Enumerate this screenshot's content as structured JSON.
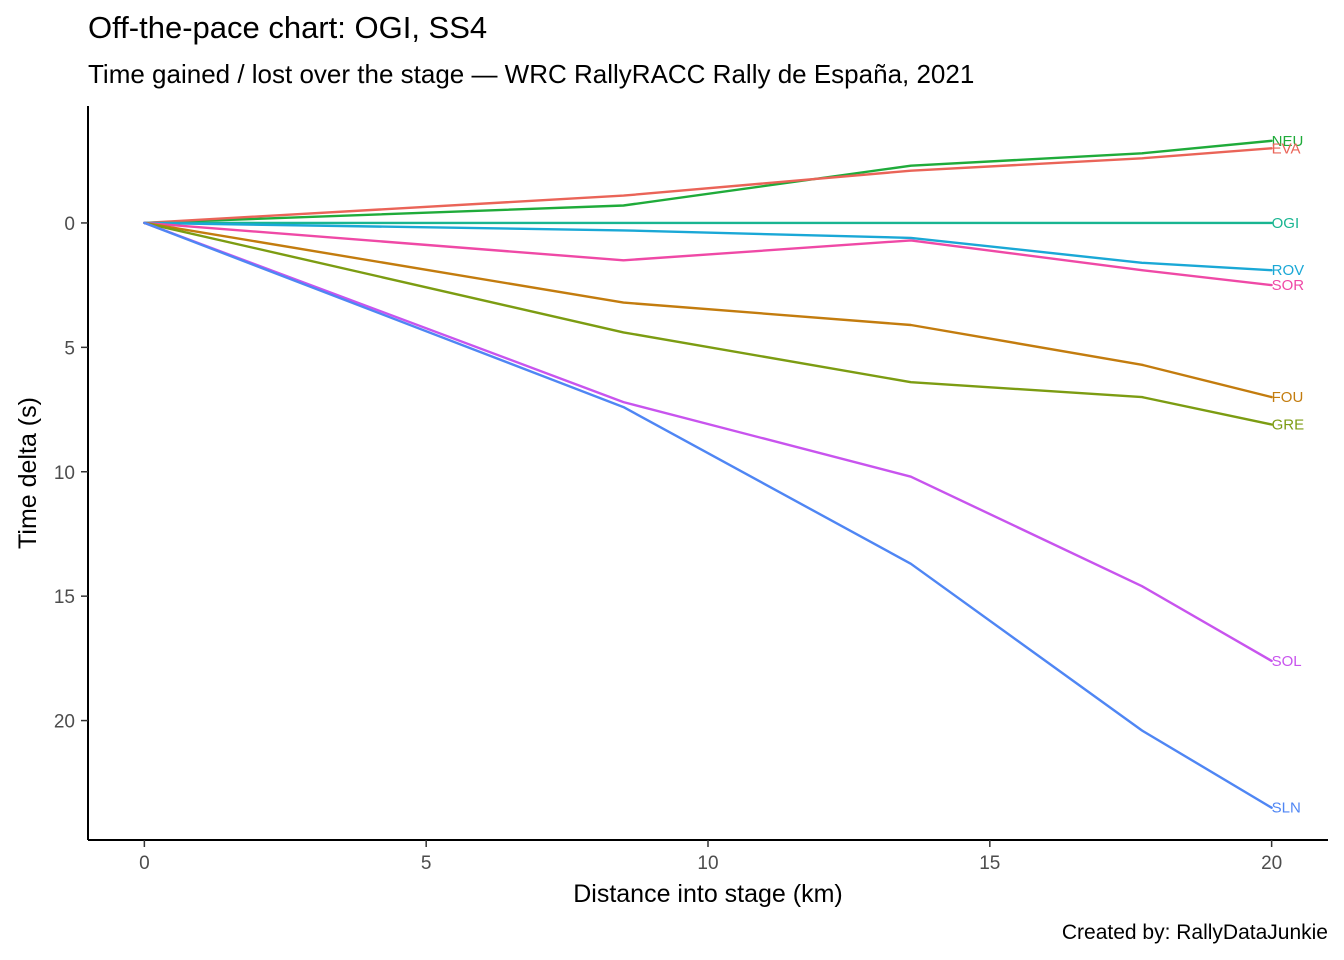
{
  "chart_data": {
    "type": "line",
    "title": "Off-the-pace chart: OGI, SS4",
    "subtitle": "Time gained / lost over the stage — WRC RallyRACC Rally de España, 2021",
    "caption": "Created by: RallyDataJunkie",
    "xlabel": "Distance into stage (km)",
    "ylabel": "Time delta (s)",
    "xlim": [
      -1,
      21
    ],
    "ylim": [
      -4.7,
      24.8
    ],
    "y_reversed": true,
    "x_ticks": [
      0,
      5,
      10,
      15,
      20
    ],
    "x_tick_labels": [
      "0",
      "5",
      "10",
      "15",
      "20"
    ],
    "y_ticks": [
      0,
      5,
      10,
      15,
      20
    ],
    "y_tick_labels": [
      "0",
      "5",
      "10",
      "15",
      "20"
    ],
    "grid": false,
    "legend": "none; series labels at line ends",
    "x": [
      0,
      8.5,
      13.6,
      17.7,
      20
    ],
    "series": [
      {
        "name": "NEU",
        "color": "#1fab3a",
        "values": [
          0,
          -0.7,
          -2.3,
          -2.8,
          -3.3
        ]
      },
      {
        "name": "EVA",
        "color": "#ea6458",
        "values": [
          0,
          -1.1,
          -2.1,
          -2.6,
          -3.0
        ]
      },
      {
        "name": "OGI",
        "color": "#19b591",
        "values": [
          0,
          0,
          0,
          0,
          0
        ]
      },
      {
        "name": "ROV",
        "color": "#1aa8d6",
        "values": [
          0,
          0.3,
          0.6,
          1.6,
          1.9
        ]
      },
      {
        "name": "SOR",
        "color": "#ef49a6",
        "values": [
          0,
          1.5,
          0.7,
          1.9,
          2.5
        ]
      },
      {
        "name": "FOU",
        "color": "#c37c0e",
        "values": [
          0,
          3.2,
          4.1,
          5.7,
          7.0
        ]
      },
      {
        "name": "GRE",
        "color": "#7c9c12",
        "values": [
          0,
          4.4,
          6.4,
          7.0,
          8.1
        ]
      },
      {
        "name": "SOL",
        "color": "#c854ee",
        "values": [
          0,
          7.2,
          10.2,
          14.6,
          17.6
        ]
      },
      {
        "name": "SLN",
        "color": "#4f86f4",
        "values": [
          0,
          7.4,
          13.7,
          20.4,
          23.5
        ]
      }
    ]
  }
}
